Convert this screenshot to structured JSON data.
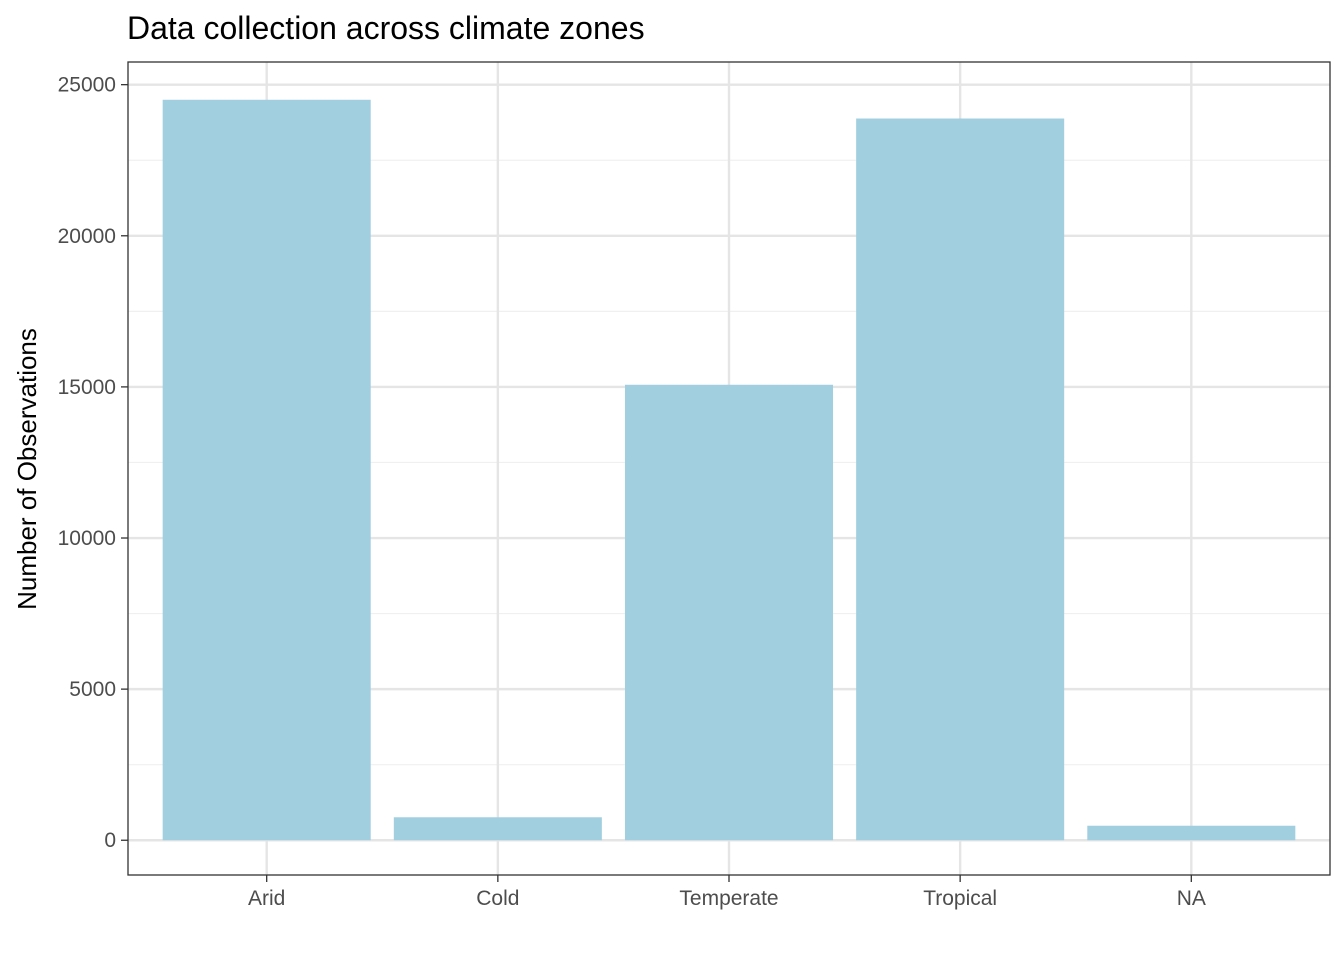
{
  "chart_data": {
    "type": "bar",
    "title": "Data collection across climate zones",
    "xlabel": "",
    "ylabel": "Number of Observations",
    "categories": [
      "Arid",
      "Cold",
      "Temperate",
      "Tropical",
      "NA"
    ],
    "values": [
      24500,
      760,
      15070,
      23880,
      480
    ],
    "ylim": [
      -1150,
      25750
    ],
    "yticks": [
      0,
      5000,
      10000,
      15000,
      20000,
      25000
    ],
    "ytick_labels": [
      "0",
      "5000",
      "10000",
      "15000",
      "20000",
      "25000"
    ],
    "grid": true,
    "legend": "none",
    "colors": {
      "bar": "#a1cfe0",
      "grid_major": "#e5e5e5",
      "grid_minor": "#f0f0f0",
      "panel_border": "#333333",
      "tick_text": "#4d4d4d"
    }
  }
}
